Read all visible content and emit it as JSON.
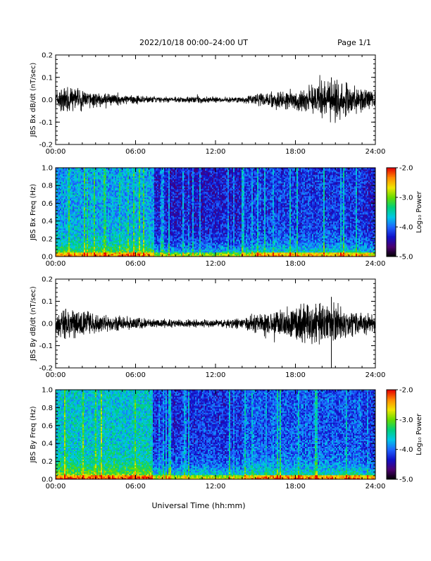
{
  "header": {
    "title": "2022/10/18  00:00–24:00 UT",
    "page": "Page 1/1"
  },
  "xlabel": "Universal Time (hh:mm)",
  "chart_data": [
    {
      "type": "line",
      "panel": "bx-waveform",
      "ylabel": "JBS Bx dB/dt (nT/sec)",
      "ylim": [
        -0.2,
        0.2
      ],
      "yticks": [
        "0.2",
        "0.1",
        "0.0",
        "-0.1",
        "-0.2"
      ],
      "xlim": [
        "00:00",
        "24:00"
      ],
      "xticks": [
        "00:00",
        "06:00",
        "12:00",
        "18:00",
        "24:00"
      ],
      "series": [
        {
          "x": [
            "00:00",
            "01:00",
            "02:00",
            "03:00",
            "04:00",
            "05:00",
            "06:00",
            "07:00",
            "08:00",
            "09:00",
            "10:00",
            "11:00",
            "12:00",
            "13:00",
            "14:00",
            "15:00",
            "16:00",
            "17:00",
            "18:00",
            "19:00",
            "20:00",
            "21:00",
            "22:00",
            "23:00",
            "24:00"
          ],
          "envelope": [
            0.035,
            0.05,
            0.035,
            0.025,
            0.02,
            0.018,
            0.015,
            0.012,
            0.01,
            0.01,
            0.012,
            0.012,
            0.01,
            0.01,
            0.012,
            0.02,
            0.03,
            0.035,
            0.035,
            0.045,
            0.06,
            0.08,
            0.06,
            0.04,
            0.03
          ],
          "max_spike": 0.1
        }
      ]
    },
    {
      "type": "heatmap",
      "panel": "bx-spectrogram",
      "ylabel": "JBS Bx Freq (Hz)",
      "ylim": [
        0.0,
        1.0
      ],
      "yticks": [
        "1.0",
        "0.8",
        "0.6",
        "0.4",
        "0.2",
        "0.0"
      ],
      "xticks": [
        "00:00",
        "06:00",
        "12:00",
        "18:00",
        "24:00"
      ],
      "colorbar": {
        "label": "Log₁₀ Power",
        "ticks": [
          "-2.0",
          "-3.0",
          "-4.0",
          "-5.0"
        ],
        "range": [
          -5.0,
          -2.0
        ]
      },
      "quiet_interval_start_hour": 7.3
    },
    {
      "type": "line",
      "panel": "by-waveform",
      "ylabel": "JBS By dB/dt (nT/sec)",
      "ylim": [
        -0.2,
        0.2
      ],
      "yticks": [
        "0.2",
        "0.1",
        "0.0",
        "-0.1",
        "-0.2"
      ],
      "xlim": [
        "00:00",
        "24:00"
      ],
      "xticks": [
        "00:00",
        "06:00",
        "12:00",
        "18:00",
        "24:00"
      ],
      "series": [
        {
          "x": [
            "00:00",
            "01:00",
            "02:00",
            "03:00",
            "04:00",
            "05:00",
            "06:00",
            "07:00",
            "08:00",
            "09:00",
            "10:00",
            "11:00",
            "12:00",
            "13:00",
            "14:00",
            "15:00",
            "16:00",
            "17:00",
            "18:00",
            "19:00",
            "20:00",
            "21:00",
            "22:00",
            "23:00",
            "24:00"
          ],
          "envelope": [
            0.05,
            0.06,
            0.045,
            0.035,
            0.03,
            0.025,
            0.022,
            0.018,
            0.015,
            0.015,
            0.015,
            0.015,
            0.012,
            0.015,
            0.02,
            0.035,
            0.05,
            0.055,
            0.06,
            0.07,
            0.075,
            0.065,
            0.05,
            0.04,
            0.03
          ],
          "max_spike": 0.12,
          "min_spike": -0.2
        }
      ]
    },
    {
      "type": "heatmap",
      "panel": "by-spectrogram",
      "ylabel": "JBS By Freq (Hz)",
      "ylim": [
        0.0,
        1.0
      ],
      "yticks": [
        "1.0",
        "0.8",
        "0.6",
        "0.4",
        "0.2",
        "0.0"
      ],
      "xticks": [
        "00:00",
        "06:00",
        "12:00",
        "18:00",
        "24:00"
      ],
      "colorbar": {
        "label": "Log₁₀ Power",
        "ticks": [
          "-2.0",
          "-3.0",
          "-4.0",
          "-5.0"
        ],
        "range": [
          -5.0,
          -2.0
        ]
      },
      "quiet_interval_start_hour": 7.3
    }
  ],
  "colors": {
    "trace": "#000000",
    "colormap": [
      "#000000",
      "#4b0070",
      "#1010c8",
      "#1e64ff",
      "#00c8e6",
      "#00d07a",
      "#64dc00",
      "#f0e600",
      "#ff8c00",
      "#e60000"
    ]
  }
}
